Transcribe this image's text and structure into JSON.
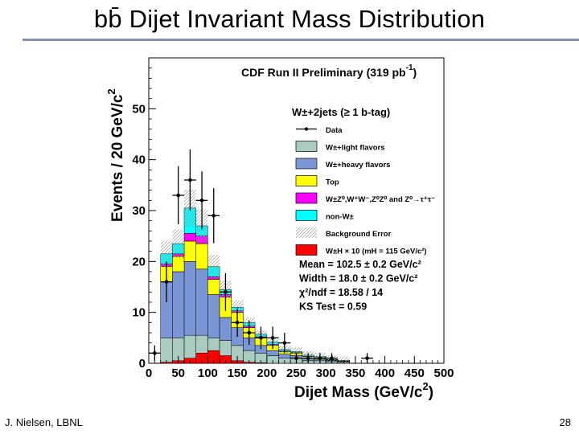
{
  "slide": {
    "title": "bb̄ Dijet Invariant Mass Distribution",
    "author": "J. Nielsen, LBNL",
    "page_number": "28"
  },
  "colors": {
    "light": "#a9cbc0",
    "heavy": "#7b96d4",
    "top": "#ffff00",
    "diboson": "#ff00ff",
    "nonw": "#00ffff",
    "wh": "#ff0000",
    "data": "#000000"
  },
  "chart_data": {
    "type": "bar",
    "title": "CDF Run II Preliminary (319 pb",
    "title_exp": "-1",
    "title_close": ")",
    "xlabel": "Dijet Mass (GeV/c",
    "xlabel_exp": "2",
    "xlabel_close": ")",
    "ylabel": "Events / 20 GeV/c",
    "ylabel_exp": "2",
    "xlim": [
      0,
      500
    ],
    "ylim": [
      0,
      60
    ],
    "xticks": [
      0,
      50,
      100,
      150,
      200,
      250,
      300,
      350,
      400,
      450,
      500
    ],
    "yticks": [
      0,
      10,
      20,
      30,
      40,
      50
    ],
    "bin_width": 20,
    "bins_start": [
      20,
      40,
      60,
      80,
      100,
      120,
      140,
      160,
      180,
      200,
      220,
      240,
      260,
      280,
      300,
      320
    ],
    "series": [
      {
        "name": "W±+light flavors",
        "key": "light",
        "values": [
          5,
          5,
          5.5,
          5.5,
          5,
          4.5,
          3.5,
          2.5,
          2,
          1.5,
          1,
          1,
          0.5,
          0.5,
          0.3,
          0.2
        ]
      },
      {
        "name": "W±+heavy flavors",
        "key": "heavy",
        "values": [
          11,
          13,
          14.5,
          13,
          8.5,
          4.5,
          3.5,
          2.5,
          1.5,
          1,
          0.8,
          0.5,
          0.5,
          0.3,
          0.2,
          0.1
        ]
      },
      {
        "name": "Top",
        "key": "top",
        "values": [
          3,
          3,
          4,
          5,
          3,
          4,
          3,
          2,
          1.5,
          1,
          0.5,
          0.5,
          0.3,
          0.2,
          0.1,
          0.1
        ]
      },
      {
        "name": "W±Z⁰,W⁺W⁻,Z⁰Z⁰ and Z⁰→τ⁺τ⁻",
        "key": "diboson",
        "values": [
          0.5,
          0.5,
          1.5,
          1.5,
          0.5,
          0.5,
          0.3,
          0.3,
          0.2,
          0.2,
          0.1,
          0.1,
          0.1,
          0.1,
          0.05,
          0.05
        ]
      },
      {
        "name": "non-W±",
        "key": "nonw",
        "values": [
          2,
          2,
          5,
          2,
          2,
          1,
          0.7,
          0.7,
          0.5,
          0.5,
          0.3,
          0.2,
          0.2,
          0.2,
          0.1,
          0.1
        ]
      }
    ],
    "signal": {
      "name": "W±H × 10 (mH = 115 GeV/c²)",
      "key": "wh",
      "values": [
        0.2,
        0.5,
        1,
        2,
        2.5,
        1.5,
        0.5,
        0.2,
        0.1,
        0,
        0,
        0,
        0,
        0,
        0,
        0
      ]
    },
    "data": {
      "x": [
        10,
        30,
        50,
        70,
        90,
        110,
        130,
        150,
        170,
        190,
        210,
        230,
        250,
        270,
        290,
        310,
        370
      ],
      "y": [
        2,
        16,
        33,
        36,
        32,
        29,
        14,
        8,
        6,
        5,
        5,
        4,
        1,
        1,
        1,
        1,
        1
      ],
      "err": [
        1.5,
        4,
        5.7,
        6,
        5.7,
        5.4,
        3.7,
        2.8,
        2.4,
        2.2,
        2.2,
        2,
        1,
        1,
        1,
        1,
        1
      ]
    },
    "legend_header": "W±+2jets (≥ 1 b-tag)",
    "legend": [
      {
        "key": "data",
        "label": "Data",
        "style": "marker"
      },
      {
        "key": "light",
        "label": "W±+light flavors",
        "style": "box"
      },
      {
        "key": "heavy",
        "label": "W±+heavy flavors",
        "style": "box"
      },
      {
        "key": "top",
        "label": "Top",
        "style": "box"
      },
      {
        "key": "diboson",
        "label": "W±Z⁰,W⁺W⁻,Z⁰Z⁰ and Z⁰→τ⁺τ⁻",
        "style": "box"
      },
      {
        "key": "nonw",
        "label": "non-W±",
        "style": "box"
      },
      {
        "key": "bkgerr",
        "label": "Background Error",
        "style": "hatch"
      },
      {
        "key": "wh",
        "label": "W±H × 10 (mH = 115 GeV/c²)",
        "style": "box"
      }
    ],
    "stats": [
      "Mean = 102.5 ± 0.2 GeV/c²",
      "Width = 18.0 ± 0.2 GeV/c²",
      "χ²/ndf = 18.58 / 14",
      "KS Test = 0.59"
    ],
    "legend_position": "top-right"
  }
}
